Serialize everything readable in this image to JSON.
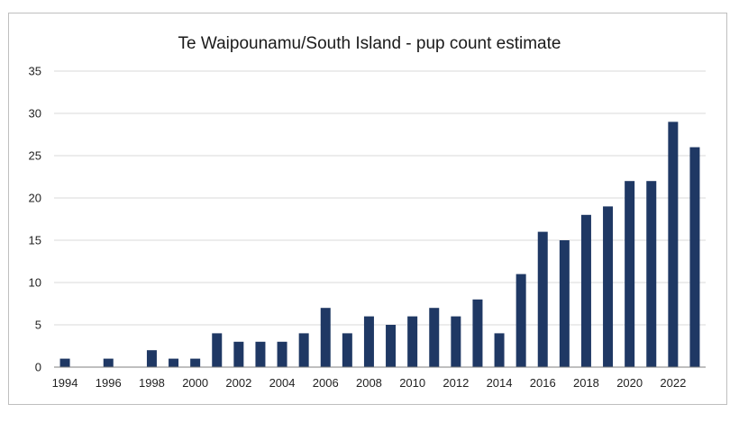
{
  "chart_data": {
    "type": "bar",
    "title": "Te Waipounamu/South Island - pup count estimate",
    "xlabel": "",
    "ylabel": "",
    "ylim": [
      0,
      35
    ],
    "yticks": [
      0,
      5,
      10,
      15,
      20,
      25,
      30,
      35
    ],
    "x_tick_labels": [
      "1994",
      "1996",
      "1998",
      "2000",
      "2002",
      "2004",
      "2006",
      "2008",
      "2010",
      "2012",
      "2014",
      "2016",
      "2018",
      "2020",
      "2022"
    ],
    "categories": [
      "1994",
      "1995",
      "1996",
      "1997",
      "1998",
      "1999",
      "2000",
      "2001",
      "2002",
      "2003",
      "2004",
      "2005",
      "2006",
      "2007",
      "2008",
      "2009",
      "2010",
      "2011",
      "2012",
      "2013",
      "2014",
      "2015",
      "2016",
      "2017",
      "2018",
      "2019",
      "2020",
      "2021",
      "2022",
      "2023"
    ],
    "values": [
      1,
      0,
      1,
      0,
      2,
      1,
      1,
      4,
      3,
      3,
      3,
      4,
      7,
      4,
      6,
      5,
      6,
      7,
      6,
      8,
      4,
      11,
      16,
      15,
      18,
      19,
      22,
      22,
      29,
      26
    ],
    "bar_color": "#1f3864",
    "grid": true,
    "grid_color": "#d9d9d9"
  }
}
